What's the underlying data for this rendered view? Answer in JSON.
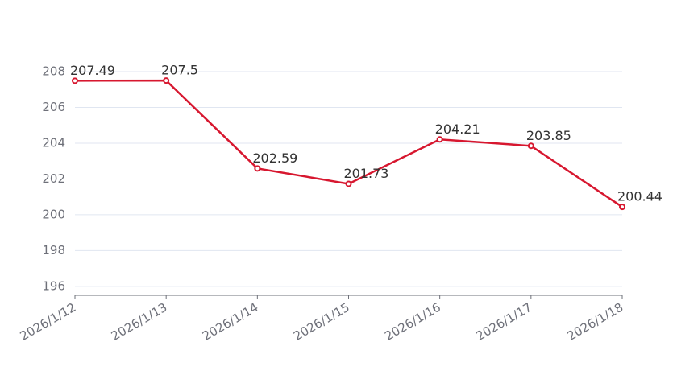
{
  "chart_data": {
    "type": "line",
    "categories": [
      "2026/1/12",
      "2026/1/13",
      "2026/1/14",
      "2026/1/15",
      "2026/1/16",
      "2026/1/17",
      "2026/1/18"
    ],
    "series": [
      {
        "color": "#d7172f",
        "values": [
          207.49,
          207.5,
          202.59,
          201.73,
          204.21,
          203.85,
          200.44
        ]
      }
    ],
    "ylim": [
      195.5,
      208
    ],
    "yticks": [
      196,
      198,
      200,
      202,
      204,
      206,
      208
    ],
    "grid": true
  }
}
